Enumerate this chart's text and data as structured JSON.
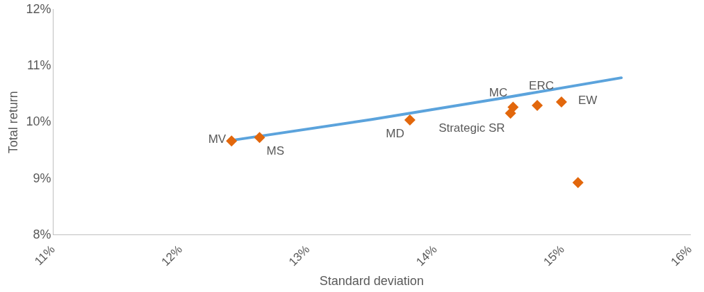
{
  "chart_data": {
    "type": "scatter",
    "xlabel": "Standard deviation",
    "ylabel": "Total return",
    "xlim": [
      11,
      16
    ],
    "xticks": [
      {
        "value": 11,
        "label": "11%"
      },
      {
        "value": 12,
        "label": "12%"
      },
      {
        "value": 13,
        "label": "13%"
      },
      {
        "value": 14,
        "label": "14%"
      },
      {
        "value": 15,
        "label": "15%"
      },
      {
        "value": 16,
        "label": "16%"
      }
    ],
    "ylim": [
      8,
      12
    ],
    "yticks": [
      {
        "value": 8,
        "label": "8%"
      },
      {
        "value": 9,
        "label": "9%"
      },
      {
        "value": 10,
        "label": "10%"
      },
      {
        "value": 11,
        "label": "11%"
      },
      {
        "value": 12,
        "label": "12%"
      }
    ],
    "grid": false,
    "legend": false,
    "marker": "diamond",
    "series": [
      {
        "type": "line",
        "color": "#5ba3dc",
        "marker": "none",
        "x": [
          12.4,
          13.5,
          14.5,
          15.46
        ],
        "values": [
          9.68,
          10.05,
          10.42,
          10.79
        ]
      },
      {
        "type": "scatter",
        "color": "#e2670c",
        "x": [
          12.4,
          12.62,
          13.8,
          14.59,
          14.61,
          14.8,
          14.99,
          15.12
        ],
        "values": [
          9.67,
          9.73,
          10.04,
          10.16,
          10.27,
          10.3,
          10.36,
          8.93
        ]
      }
    ],
    "annotations": [
      {
        "text": "MV",
        "x": 12.4,
        "y": 9.67
      },
      {
        "text": "MS",
        "x": 12.62,
        "y": 9.73
      },
      {
        "text": "MD",
        "x": 13.8,
        "y": 10.04
      },
      {
        "text": "Strategic SR",
        "x": 14.59,
        "y": 10.16
      },
      {
        "text": "MC",
        "x": 14.61,
        "y": 10.27
      },
      {
        "text": "ERC",
        "x": 14.8,
        "y": 10.3
      },
      {
        "text": "EW",
        "x": 14.99,
        "y": 10.36
      }
    ]
  }
}
